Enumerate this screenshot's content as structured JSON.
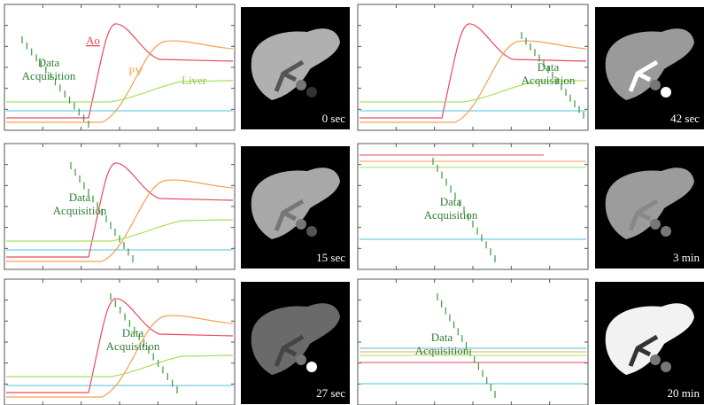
{
  "curve_labels": {
    "ao": "Ao",
    "pv": "PV",
    "liver": "Liver"
  },
  "panels": [
    {
      "acquisition_label": [
        "Data",
        "Acquisition"
      ],
      "time": "0 sec"
    },
    {
      "acquisition_label": [
        "Data",
        "Acquisition"
      ],
      "time": "42 sec"
    },
    {
      "acquisition_label": [
        "Data",
        "Acquisition"
      ],
      "time": "15 sec"
    },
    {
      "acquisition_label": [
        "Data",
        "Acquisition"
      ],
      "time": "3 min"
    },
    {
      "acquisition_label": [
        "Data",
        "Acquisition"
      ],
      "time": "27 sec"
    },
    {
      "acquisition_label": [
        "Data",
        "Acquisition"
      ],
      "time": "20 min"
    }
  ]
}
